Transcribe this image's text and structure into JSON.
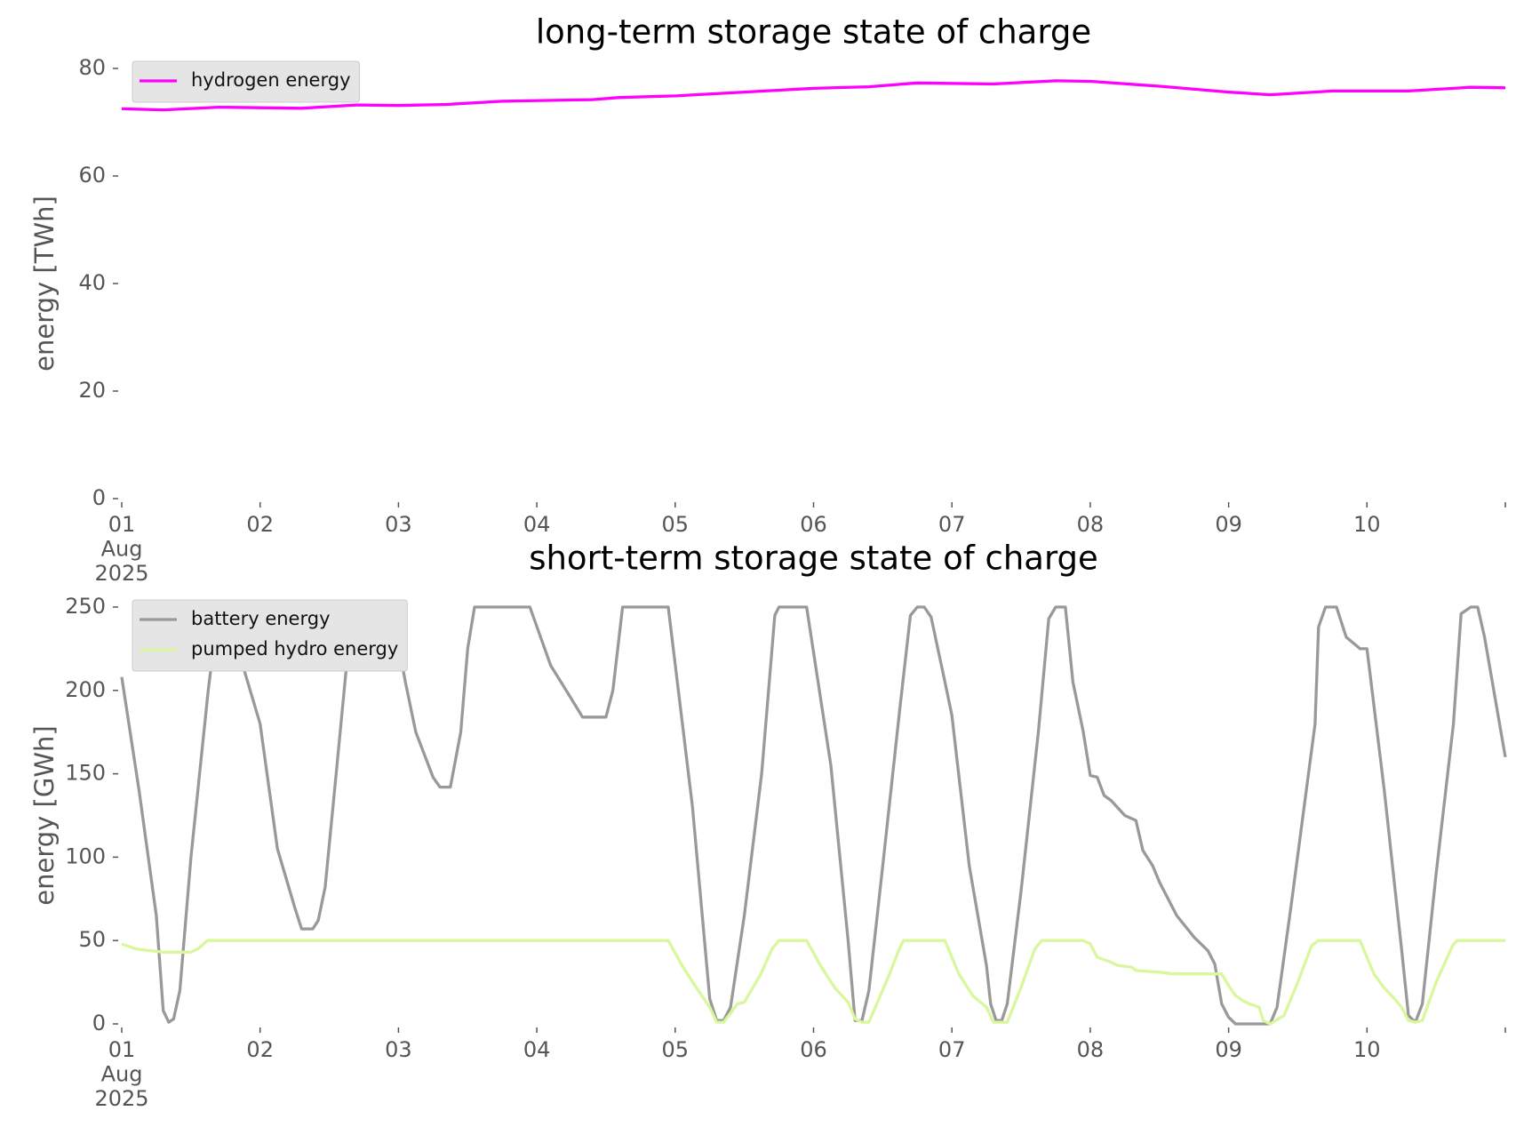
{
  "chart_data": [
    {
      "type": "line",
      "title": "long-term storage state of charge",
      "ylabel": "energy [TWh]",
      "xlim": [
        1,
        11
      ],
      "xticks": [
        {
          "value": 1,
          "label": "01\nAug\n2025"
        },
        {
          "value": 2,
          "label": "02"
        },
        {
          "value": 3,
          "label": "03"
        },
        {
          "value": 4,
          "label": "04"
        },
        {
          "value": 5,
          "label": "05"
        },
        {
          "value": 6,
          "label": "06"
        },
        {
          "value": 7,
          "label": "07"
        },
        {
          "value": 8,
          "label": "08"
        },
        {
          "value": 9,
          "label": "09"
        },
        {
          "value": 10,
          "label": "10"
        },
        {
          "value": 11,
          "label": null
        }
      ],
      "ylim": [
        0,
        80
      ],
      "yticks": [
        0,
        20,
        40,
        60,
        80
      ],
      "legend": "upper left",
      "series": [
        {
          "name": "hydrogen energy",
          "color": "#ff00ff",
          "x": [
            1.0,
            1.3,
            1.7,
            2.3,
            2.7,
            3.0,
            3.35,
            3.75,
            4.4,
            4.6,
            5.0,
            5.5,
            6.0,
            6.4,
            6.75,
            7.3,
            7.75,
            8.0,
            8.5,
            9.0,
            9.3,
            9.75,
            10.3,
            10.75,
            11.0
          ],
          "values": [
            72.5,
            72.3,
            72.8,
            72.6,
            73.2,
            73.1,
            73.3,
            73.9,
            74.2,
            74.6,
            74.9,
            75.6,
            76.3,
            76.6,
            77.3,
            77.1,
            77.7,
            77.6,
            76.7,
            75.6,
            75.1,
            75.8,
            75.8,
            76.5,
            76.4
          ]
        }
      ]
    },
    {
      "type": "line",
      "title": "short-term storage state of charge",
      "ylabel": "energy [GWh]",
      "xlim": [
        1,
        11
      ],
      "xticks": [
        {
          "value": 1,
          "label": "01\nAug\n2025"
        },
        {
          "value": 2,
          "label": "02"
        },
        {
          "value": 3,
          "label": "03"
        },
        {
          "value": 4,
          "label": "04"
        },
        {
          "value": 5,
          "label": "05"
        },
        {
          "value": 6,
          "label": "06"
        },
        {
          "value": 7,
          "label": "07"
        },
        {
          "value": 8,
          "label": "08"
        },
        {
          "value": 9,
          "label": "09"
        },
        {
          "value": 10,
          "label": "10"
        },
        {
          "value": 11,
          "label": null
        }
      ],
      "ylim": [
        0,
        250
      ],
      "yticks": [
        0,
        50,
        100,
        150,
        200,
        250
      ],
      "legend": "upper left",
      "series": [
        {
          "name": "battery energy",
          "color": "#999999",
          "x": [
            1.0,
            1.125,
            1.25,
            1.3,
            1.34,
            1.375,
            1.42,
            1.5,
            1.625,
            1.7,
            1.8,
            1.875,
            2.0,
            2.125,
            2.25,
            2.3,
            2.38,
            2.42,
            2.47,
            2.55,
            2.625,
            2.7,
            2.95,
            3.05,
            3.125,
            3.25,
            3.3,
            3.375,
            3.45,
            3.5,
            3.55,
            3.95,
            4.1,
            4.25,
            4.33,
            4.5,
            4.55,
            4.62,
            4.95,
            5.125,
            5.25,
            5.3,
            5.35,
            5.4,
            5.5,
            5.625,
            5.72,
            5.75,
            5.95,
            6.125,
            6.25,
            6.3,
            6.35,
            6.4,
            6.5,
            6.625,
            6.7,
            6.75,
            6.8,
            6.85,
            6.95,
            7.0,
            7.125,
            7.25,
            7.28,
            7.32,
            7.36,
            7.4,
            7.5,
            7.625,
            7.7,
            7.75,
            7.82,
            7.875,
            7.95,
            8.0,
            8.05,
            8.1,
            8.15,
            8.25,
            8.33,
            8.38,
            8.45,
            8.5,
            8.625,
            8.75,
            8.85,
            8.9,
            8.95,
            9.0,
            9.05,
            9.3,
            9.35,
            9.45,
            9.625,
            9.65,
            9.7,
            9.78,
            9.85,
            9.95,
            10.0,
            10.125,
            10.25,
            10.3,
            10.35,
            10.4,
            10.5,
            10.625,
            10.68,
            10.75,
            10.8,
            10.85,
            11.0
          ],
          "values": [
            208,
            140,
            65,
            8,
            1,
            3,
            20,
            100,
            200,
            250,
            250,
            215,
            180,
            105,
            70,
            57,
            57,
            62,
            82,
            150,
            215,
            250,
            250,
            205,
            175,
            148,
            142,
            142,
            175,
            225,
            250,
            250,
            215,
            195,
            184,
            184,
            200,
            250,
            250,
            130,
            15,
            2,
            2,
            10,
            65,
            150,
            245,
            250,
            250,
            155,
            50,
            2,
            2,
            20,
            95,
            190,
            245,
            250,
            250,
            244,
            205,
            185,
            95,
            35,
            12,
            2,
            2,
            12,
            80,
            175,
            243,
            250,
            250,
            205,
            175,
            149,
            148,
            137,
            134,
            125,
            122,
            104,
            95,
            85,
            65,
            52,
            44,
            36,
            12,
            4,
            0,
            0,
            10,
            70,
            180,
            238,
            250,
            250,
            232,
            225,
            225,
            140,
            45,
            5,
            1,
            12,
            90,
            180,
            246,
            250,
            250,
            232,
            160
          ]
        },
        {
          "name": "pumped hydro energy",
          "color": "#d9f79c",
          "x": [
            1.0,
            1.1,
            1.3,
            1.5,
            1.55,
            1.62,
            4.95,
            5.05,
            5.15,
            5.25,
            5.3,
            5.35,
            5.45,
            5.5,
            5.62,
            5.7,
            5.75,
            5.95,
            6.05,
            6.15,
            6.25,
            6.3,
            6.35,
            6.4,
            6.55,
            6.62,
            6.65,
            6.95,
            7.05,
            7.15,
            7.25,
            7.3,
            7.4,
            7.5,
            7.6,
            7.65,
            7.95,
            8.0,
            8.05,
            8.15,
            8.2,
            8.3,
            8.33,
            8.5,
            8.6,
            8.95,
            9.0,
            9.05,
            9.1,
            9.15,
            9.22,
            9.25,
            9.3,
            9.4,
            9.5,
            9.6,
            9.65,
            9.95,
            10.05,
            10.12,
            10.2,
            10.25,
            10.3,
            10.35,
            10.4,
            10.5,
            10.62,
            10.65,
            11.0
          ],
          "values": [
            48,
            45,
            43,
            43,
            45,
            50,
            50,
            35,
            22,
            10,
            1,
            1,
            12,
            13,
            30,
            45,
            50,
            50,
            35,
            22,
            13,
            3,
            1,
            1,
            30,
            45,
            50,
            50,
            30,
            17,
            10,
            1,
            1,
            22,
            45,
            50,
            50,
            48,
            40,
            37,
            35,
            34,
            32,
            31,
            30,
            30,
            23,
            17,
            14,
            12,
            10,
            2,
            0,
            5,
            25,
            47,
            50,
            50,
            30,
            22,
            15,
            10,
            2,
            1,
            2,
            25,
            47,
            50,
            50
          ]
        }
      ]
    }
  ]
}
